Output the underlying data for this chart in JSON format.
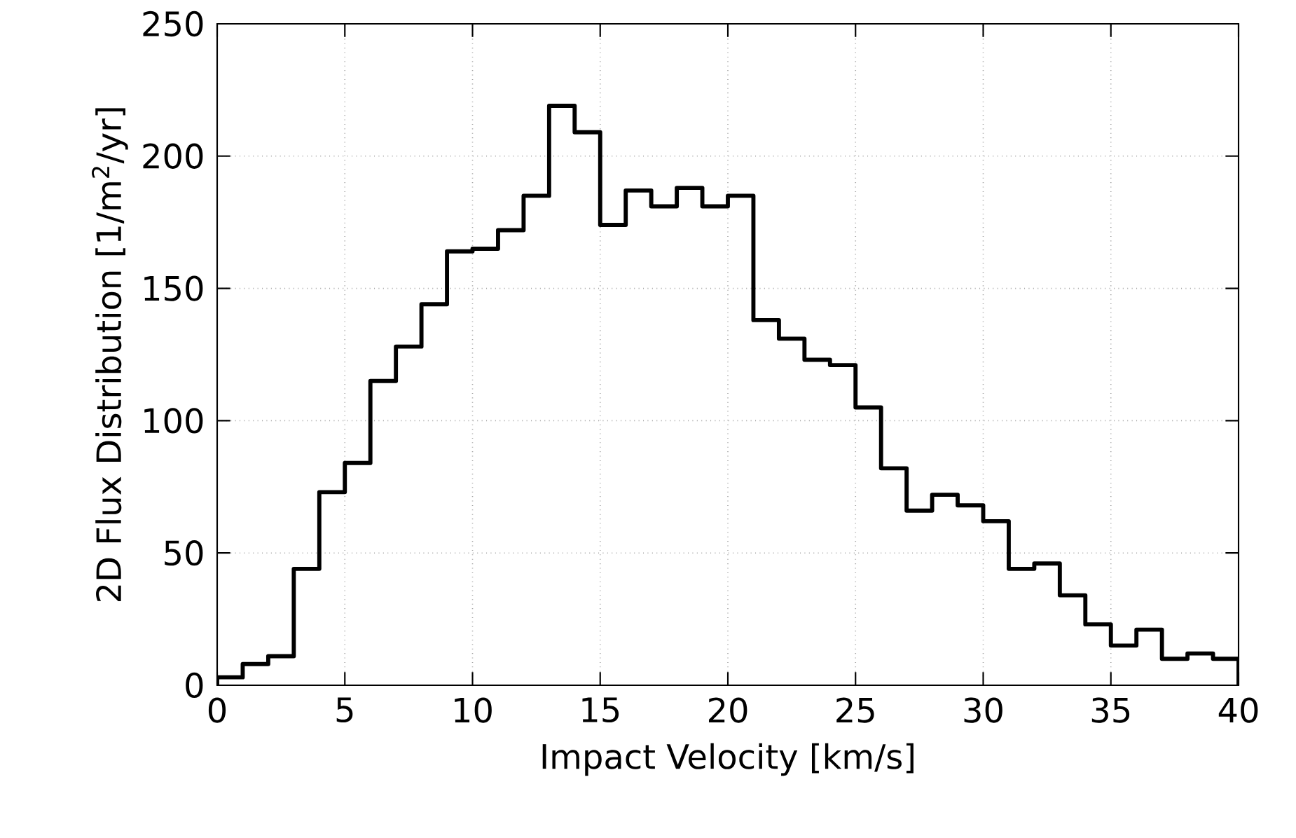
{
  "chart_data": {
    "type": "histogram",
    "xlabel": "Impact Velocity [km/s]",
    "ylabel": "2D Flux Distribution [1/m$^{2}$/yr]",
    "bins": [
      0,
      1,
      2,
      3,
      4,
      5,
      6,
      7,
      8,
      9,
      10,
      11,
      12,
      13,
      14,
      15,
      16,
      17,
      18,
      19,
      20,
      21,
      22,
      23,
      24,
      25,
      26,
      27,
      28,
      29,
      30,
      31,
      32,
      33,
      34,
      35,
      36,
      37,
      38,
      39,
      40
    ],
    "values": [
      3,
      8,
      11,
      44,
      73,
      84,
      115,
      128,
      144,
      164,
      165,
      172,
      185,
      219,
      209,
      174,
      187,
      181,
      188,
      181,
      185,
      138,
      131,
      123,
      121,
      105,
      82,
      66,
      72,
      68,
      62,
      44,
      46,
      34,
      23,
      15,
      21,
      10,
      12,
      10
    ],
    "color": "#000000",
    "xlim": [
      0,
      40
    ],
    "xticks": [
      0,
      5,
      10,
      15,
      20,
      25,
      30,
      35,
      40
    ],
    "ylim": [
      0,
      250
    ],
    "yticks": [
      0,
      50,
      100,
      150,
      200,
      250
    ],
    "grid": true
  }
}
